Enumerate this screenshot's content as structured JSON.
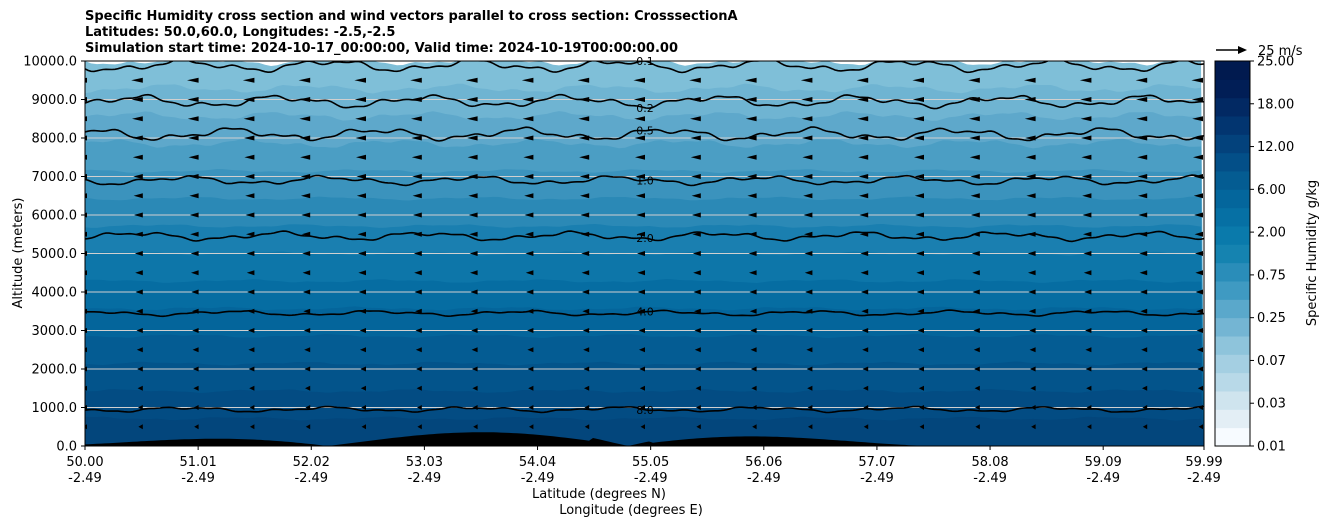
{
  "chart_data": {
    "type": "contour",
    "title_lines": [
      "Specific Humidity cross section and wind vectors parallel to cross section: CrosssectionA",
      "Latitudes: 50.0,60.0, Longitudes: -2.5,-2.5",
      "Simulation start time: 2024-10-17_00:00:00, Valid time: 2024-10-19T00:00:00.00"
    ],
    "ylabel": "Altitude (meters)",
    "xlabel_lat": "Latitude (degrees N)",
    "xlabel_lon": "Longitude (degrees E)",
    "ylim": [
      0,
      10000
    ],
    "xlim": [
      50.0,
      59.99
    ],
    "y_ticks": [
      "0.0",
      "1000.0",
      "2000.0",
      "3000.0",
      "4000.0",
      "5000.0",
      "6000.0",
      "7000.0",
      "8000.0",
      "9000.0",
      "10000.0"
    ],
    "y_tick_values": [
      0,
      1000,
      2000,
      3000,
      4000,
      5000,
      6000,
      7000,
      8000,
      9000,
      10000
    ],
    "x_tick_values": [
      50.0,
      51.01,
      52.02,
      53.03,
      54.04,
      55.05,
      56.06,
      57.07,
      58.08,
      59.09,
      59.99
    ],
    "x_ticks_lat": [
      "50.00",
      "51.01",
      "52.02",
      "53.03",
      "54.04",
      "55.05",
      "56.06",
      "57.07",
      "58.08",
      "59.09",
      "59.99"
    ],
    "x_ticks_lon": [
      "-2.49",
      "-2.49",
      "-2.49",
      "-2.49",
      "-2.49",
      "-2.49",
      "-2.49",
      "-2.49",
      "-2.49",
      "-2.49",
      "-2.49"
    ],
    "grid": "horizontal",
    "colorbar": {
      "label": "Specific Humidity g/kg",
      "tick_labels": [
        "0.01",
        "0.03",
        "0.07",
        "0.25",
        "0.75",
        "2.00",
        "6.00",
        "12.00",
        "18.00",
        "25.00"
      ],
      "colors": [
        "#f7fbff",
        "#e3eef5",
        "#cfe4ee",
        "#b8d9e8",
        "#a4cfe2",
        "#8ec4db",
        "#74b5d3",
        "#5aa8cb",
        "#3f9ac2",
        "#2a8db9",
        "#1583b0",
        "#0a7aab",
        "#0670a4",
        "#04669c",
        "#045c92",
        "#034f88",
        "#03427c",
        "#023570",
        "#022963",
        "#011e56",
        "#011a4f"
      ]
    },
    "contours": [
      {
        "label": "0.1",
        "base_altitude": 9880
      },
      {
        "label": "0.2",
        "base_altitude": 8950
      },
      {
        "label": "0.5",
        "base_altitude": 8100
      },
      {
        "label": "1.0",
        "base_altitude": 6900
      },
      {
        "label": "2.0",
        "base_altitude": 5450
      },
      {
        "label": "4.0",
        "base_altitude": 3450
      },
      {
        "label": "8.0",
        "base_altitude": 950
      }
    ],
    "wind_reference": "25 m/s",
    "terrain_max_altitude": 600
  }
}
